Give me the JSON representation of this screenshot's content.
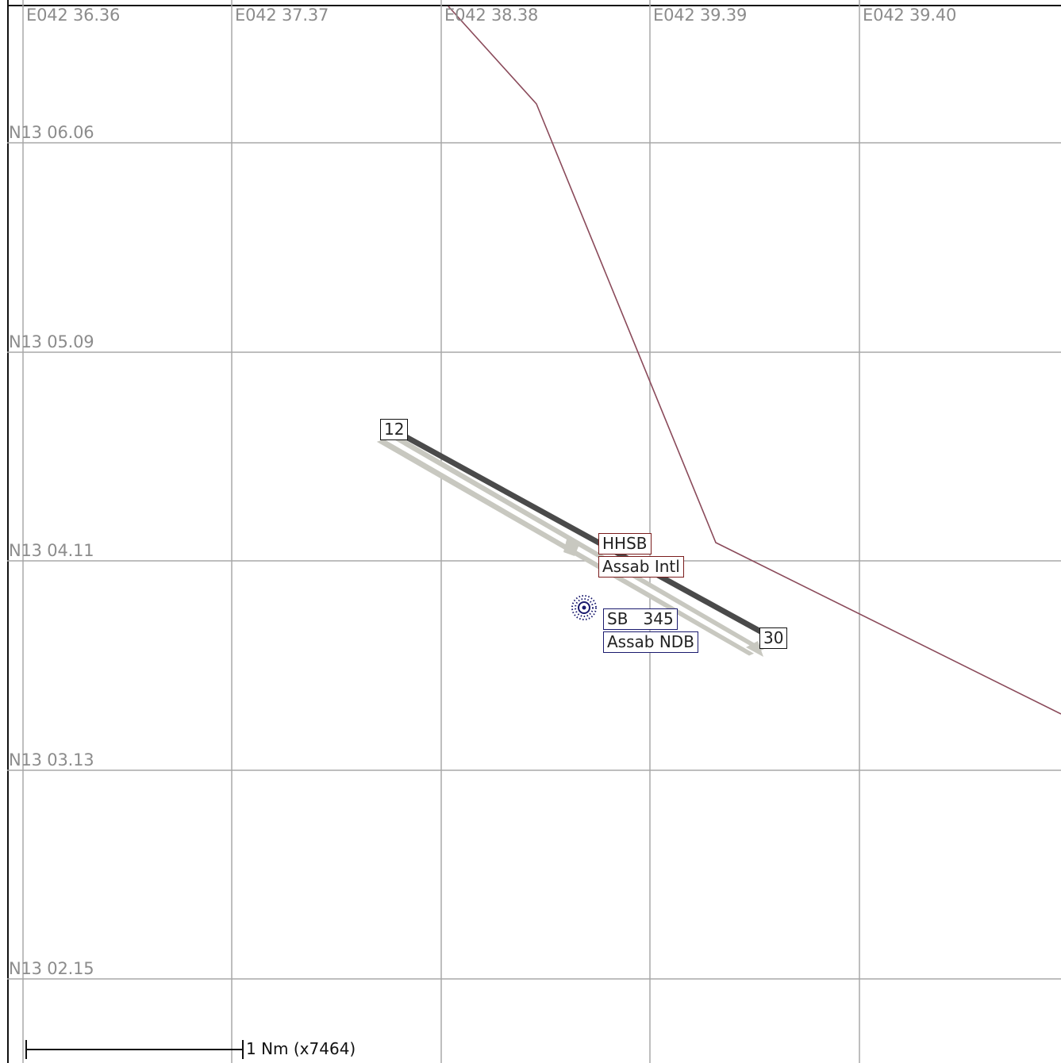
{
  "grid": {
    "longitude_labels": [
      "E042 36.36",
      "E042 37.37",
      "E042 38.38",
      "E042 39.39",
      "E042 39.40"
    ],
    "latitude_labels": [
      "N13 06.06",
      "N13 05.09",
      "N13 04.11",
      "N13 03.13",
      "N13 02.15"
    ],
    "line_color": "#a8a8a8"
  },
  "runway": {
    "end_a": "12",
    "end_b": "30",
    "pavement_color": "#c8c8c0",
    "centerline_color": "#4a4a4a"
  },
  "airport": {
    "icao": "HHSB",
    "name": "Assab Intl",
    "color": "#7a1c1c"
  },
  "navaid": {
    "ident_freq": "SB   345",
    "name": "Assab NDB",
    "icon": "ndb-icon",
    "color": "#1a1a6e"
  },
  "boundary": {
    "color": "#8a4a5a"
  },
  "scale": {
    "label": "1 Nm (x7464)"
  }
}
